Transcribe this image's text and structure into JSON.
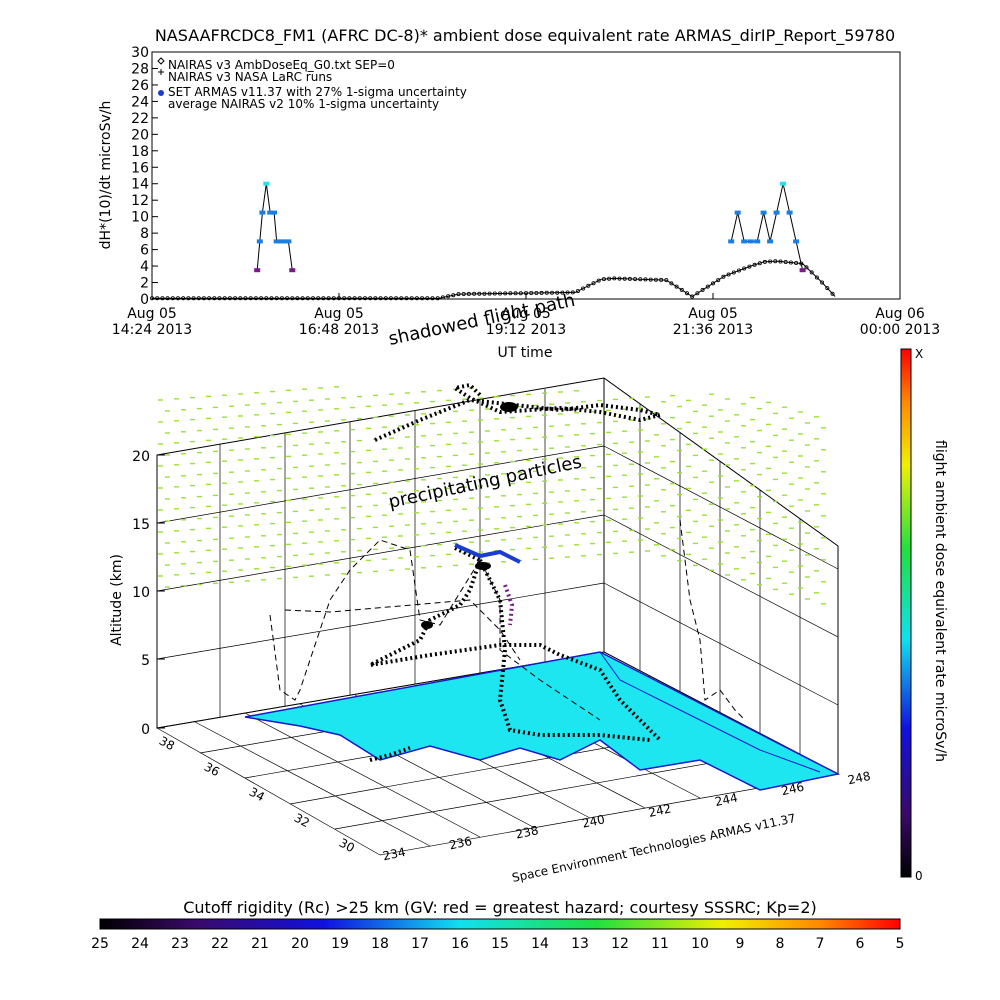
{
  "title": "NASAAFRCDC8_FM1 (AFRC DC-8)* ambient dose equivalent rate ARMAS_dirIP_Report_59780",
  "chart_data": [
    {
      "type": "line",
      "ylabel": "dH*(10)/dt microSv/h",
      "xlabel": "UT time",
      "ylim": [
        0,
        30
      ],
      "yticks": [
        "0",
        "2",
        "4",
        "6",
        "8",
        "10",
        "12",
        "14",
        "16",
        "18",
        "20",
        "22",
        "24",
        "26",
        "28",
        "30"
      ],
      "xticks": [
        {
          "date": "Aug 05",
          "time": "14:24 2013"
        },
        {
          "date": "Aug 05",
          "time": "16:48 2013"
        },
        {
          "date": "Aug 05",
          "time": "19:12 2013"
        },
        {
          "date": "Aug 05",
          "time": "21:36 2013"
        },
        {
          "date": "Aug 06",
          "time": "00:00 2013"
        }
      ],
      "legend_position": "top-left",
      "legend": [
        "NAIRAS v3 AmbDoseEq_G0.txt SEP=0",
        "NAIRAS v3 NASA LaRC runs",
        "SET ARMAS v11.37 with 27% 1-sigma uncertainty",
        "average NAIRAS v2 10% 1-sigma uncertainty"
      ],
      "series": [
        {
          "name": "NAIRAS v3 AmbDoseEq_G0.txt SEP=0",
          "x": [
            "14:24",
            "15:45",
            "16:50",
            "18:05",
            "18:20",
            "19:50",
            "20:10",
            "20:20",
            "21:00",
            "21:20",
            "21:45",
            "22:05",
            "22:15",
            "22:25",
            "22:45",
            "23:00",
            "23:10"
          ],
          "values": [
            0.1,
            0.1,
            0.1,
            0.1,
            0.6,
            0.8,
            2.4,
            2.5,
            2.3,
            0.3,
            2.8,
            4.0,
            4.5,
            4.6,
            4.3,
            2.0,
            0.3
          ]
        },
        {
          "name": "SET ARMAS v11.37 with 27% 1-sigma uncertainty",
          "x": [
            "15:45",
            "15:47",
            "15:49",
            "15:52",
            "15:55",
            "15:58",
            "16:00",
            "16:03",
            "16:06",
            "16:09",
            "16:12",
            "21:50",
            "21:55",
            "22:00",
            "22:05",
            "22:10",
            "22:15",
            "22:20",
            "22:25",
            "22:30",
            "22:35",
            "22:40",
            "22:45"
          ],
          "values": [
            3.5,
            7,
            10.5,
            14,
            10.5,
            10.5,
            7,
            7,
            7,
            7,
            3.5,
            7,
            10.5,
            7,
            7,
            7,
            10.5,
            7,
            10.5,
            14,
            10.5,
            7,
            3.5
          ]
        }
      ]
    },
    {
      "type": "scatter",
      "zlabel": "Altitude (km)",
      "zticks": [
        "0",
        "5",
        "10",
        "15",
        "20"
      ],
      "lat_ticks": [
        "30",
        "32",
        "34",
        "36",
        "38"
      ],
      "lon_ticks": [
        "234",
        "236",
        "238",
        "240",
        "242",
        "244",
        "246",
        "248"
      ],
      "annotations": [
        "shadowed flight path",
        "precipitating particles"
      ],
      "credit": "Space Environment Technologies ARMAS v11.37"
    }
  ],
  "colorbar_right": {
    "label": "flight ambient dose equivalent rate microSv/h",
    "top": "X",
    "bottom": "0"
  },
  "colorbar_bottom": {
    "caption": "Cutoff rigidity (Rc) >25 km (GV: red = greatest hazard; courtesy SSSRC; Kp=2)",
    "ticks": [
      "25",
      "24",
      "23",
      "22",
      "21",
      "20",
      "19",
      "18",
      "17",
      "16",
      "15",
      "14",
      "13",
      "12",
      "11",
      "10",
      "9",
      "8",
      "7",
      "6",
      "5"
    ]
  },
  "colors": {
    "map_fill": "#1ee6f0",
    "coast": "#1818c8",
    "particles": "#9adf3a",
    "armas_blue": "#1a7fe0",
    "armas_cyan": "#22e0f0",
    "armas_purple": "#7a1a8a"
  }
}
